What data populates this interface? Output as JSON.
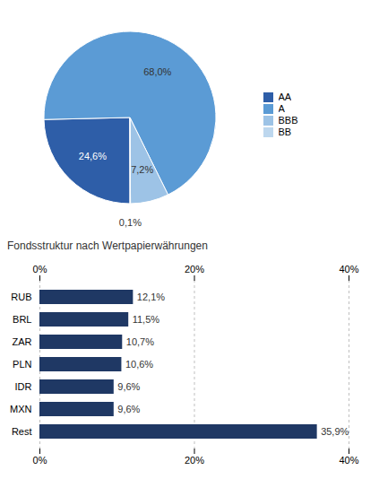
{
  "chart_data": [
    {
      "type": "pie",
      "categories": [
        "AA",
        "A",
        "BBB",
        "BB"
      ],
      "values": [
        24.6,
        68.0,
        7.2,
        0.1
      ],
      "value_labels": [
        "24,6%",
        "68,0%",
        "7,2%",
        "0,1%"
      ],
      "colors": [
        "#2e5ea8",
        "#5b9bd5",
        "#9dc3e6",
        "#bdd7ee"
      ],
      "data_labels": true,
      "legend": "right"
    },
    {
      "type": "bar",
      "subtitle": "Fondsstruktur nach Wertpapierwährungen",
      "orientation": "horizontal",
      "categories": [
        "RUB",
        "BRL",
        "ZAR",
        "PLN",
        "IDR",
        "MXN",
        "Rest"
      ],
      "values": [
        12.1,
        11.5,
        10.7,
        10.6,
        9.6,
        9.6,
        35.9
      ],
      "value_labels": [
        "12,1%",
        "11,5%",
        "10,7%",
        "10,6%",
        "9,6%",
        "9,6%",
        "35,9%"
      ],
      "data_labels": true,
      "color": "#1f3864",
      "xlim": [
        0,
        40
      ],
      "xticks": [
        {
          "value": 0,
          "label": "0%"
        },
        {
          "value": 20,
          "label": "20%"
        },
        {
          "value": 40,
          "label": "40%"
        }
      ],
      "grid": true
    }
  ]
}
